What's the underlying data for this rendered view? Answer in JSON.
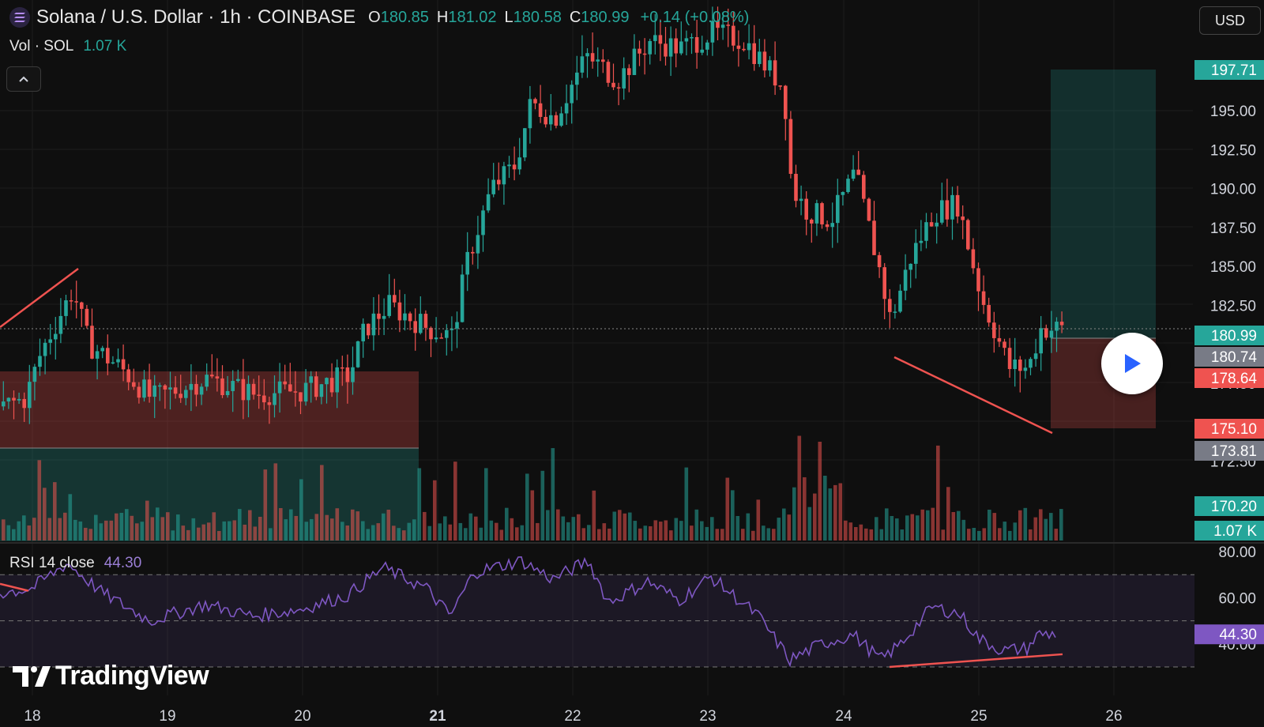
{
  "header": {
    "title": "Solana / U.S. Dollar · 1h · COINBASE",
    "ohlc": [
      {
        "key": "O",
        "value": "180.85"
      },
      {
        "key": "H",
        "value": "181.02"
      },
      {
        "key": "L",
        "value": "180.58"
      },
      {
        "key": "C",
        "value": "180.99"
      }
    ],
    "change": "+0.14 (+0.08%)"
  },
  "volume": {
    "label": "Vol · SOL",
    "value": "1.07 K"
  },
  "currency": "USD",
  "rsi": {
    "label": "RSI 14 close",
    "value": "44.30"
  },
  "watermark": "TradingView",
  "colors": {
    "up": "#26a69a",
    "down": "#ef5350",
    "rsi": "#7e57c2",
    "background": "#0f0f0f"
  },
  "icons": {
    "logo": "solana-logo-icon",
    "collapse": "chevron-up-icon",
    "play": "play-icon",
    "brand": "tradingview-logo-icon"
  },
  "chart_data": {
    "type": "candlestick",
    "x_ticks": [
      "18",
      "19",
      "20",
      "21",
      "22",
      "23",
      "24",
      "25",
      "26"
    ],
    "y_ticks": [
      "197.71",
      "195.00",
      "192.50",
      "190.00",
      "187.50",
      "185.00",
      "182.50",
      "180.99",
      "180.74",
      "178.64",
      "177.50",
      "175.10",
      "173.81",
      "172.50",
      "170.20",
      "1.07 K"
    ],
    "price_labels": [
      {
        "value": "197.71",
        "color": "#26a69a"
      },
      {
        "value": "180.99",
        "color": "#26a69a"
      },
      {
        "value": "180.74",
        "color": "#787b86"
      },
      {
        "value": "178.64",
        "color": "#ef5350"
      },
      {
        "value": "175.10",
        "color": "#ef5350"
      },
      {
        "value": "173.81",
        "color": "#787b86"
      },
      {
        "value": "170.20",
        "color": "#26a69a"
      },
      {
        "value": "1.07 K",
        "color": "#26a69a"
      }
    ],
    "price_axis": [
      "195.00",
      "192.50",
      "190.00",
      "187.50",
      "185.00",
      "182.50",
      "177.50",
      "172.50"
    ],
    "rsi_axis": [
      "80.00",
      "60.00",
      "40.00"
    ],
    "rsi_value_label": "44.30",
    "last_price": 180.99,
    "price_keypoints": [
      [
        0,
        176.0
      ],
      [
        30,
        176.5
      ],
      [
        50,
        179.5
      ],
      [
        90,
        183.5
      ],
      [
        110,
        180.0
      ],
      [
        150,
        178.5
      ],
      [
        190,
        176.5
      ],
      [
        260,
        177.8
      ],
      [
        320,
        176.8
      ],
      [
        380,
        177.0
      ],
      [
        440,
        178.0
      ],
      [
        460,
        181.0
      ],
      [
        490,
        182.5
      ],
      [
        540,
        181.0
      ],
      [
        570,
        180.5
      ],
      [
        590,
        185.5
      ],
      [
        620,
        190.0
      ],
      [
        650,
        191.5
      ],
      [
        670,
        195.5
      ],
      [
        700,
        194.5
      ],
      [
        740,
        198.5
      ],
      [
        780,
        197.0
      ],
      [
        820,
        199.5
      ],
      [
        860,
        199.0
      ],
      [
        900,
        200.0
      ],
      [
        940,
        199.5
      ],
      [
        990,
        196.5
      ],
      [
        1000,
        190.0
      ],
      [
        1020,
        188.5
      ],
      [
        1050,
        188.0
      ],
      [
        1080,
        191.0
      ],
      [
        1110,
        185.0
      ],
      [
        1125,
        181.5
      ],
      [
        1150,
        185.5
      ],
      [
        1180,
        188.5
      ],
      [
        1210,
        189.0
      ],
      [
        1240,
        183.0
      ],
      [
        1260,
        180.5
      ],
      [
        1275,
        178.5
      ],
      [
        1300,
        178.5
      ],
      [
        1315,
        180.99
      ]
    ],
    "rsi_keypoints": [
      [
        0,
        62
      ],
      [
        40,
        64
      ],
      [
        85,
        75
      ],
      [
        130,
        62
      ],
      [
        190,
        50
      ],
      [
        260,
        57
      ],
      [
        320,
        52
      ],
      [
        380,
        55
      ],
      [
        440,
        61
      ],
      [
        485,
        73
      ],
      [
        540,
        64
      ],
      [
        570,
        52
      ],
      [
        600,
        71
      ],
      [
        660,
        76
      ],
      [
        700,
        68
      ],
      [
        745,
        76
      ],
      [
        770,
        58
      ],
      [
        820,
        67
      ],
      [
        860,
        59
      ],
      [
        900,
        69
      ],
      [
        960,
        52
      ],
      [
        1000,
        33
      ],
      [
        1040,
        40
      ],
      [
        1080,
        44
      ],
      [
        1115,
        33
      ],
      [
        1140,
        40
      ],
      [
        1180,
        56
      ],
      [
        1215,
        53
      ],
      [
        1240,
        42
      ],
      [
        1270,
        37
      ],
      [
        1300,
        38
      ],
      [
        1315,
        44.3
      ]
    ],
    "rsi_bands": {
      "upper": 70,
      "middle": 50,
      "lower": 30
    },
    "annotations": [
      {
        "type": "trend-line",
        "color": "#ef5350",
        "points": [
          [
            0,
            181.5
          ],
          [
            99,
            185.0
          ]
        ]
      },
      {
        "type": "trend-line",
        "color": "#ef5350",
        "points": [
          [
            1110,
            179.8
          ],
          [
            1305,
            175.1
          ]
        ]
      },
      {
        "type": "rsi-trend-line",
        "color": "#ef5350",
        "points": [
          [
            1105,
            31
          ],
          [
            1318,
            36
          ]
        ]
      },
      {
        "type": "long-position",
        "entry": 173.81,
        "stop": 178.64,
        "target": 170.2
      },
      {
        "type": "long-position",
        "entry": 180.74,
        "stop": 175.1,
        "target": 197.71
      }
    ]
  }
}
